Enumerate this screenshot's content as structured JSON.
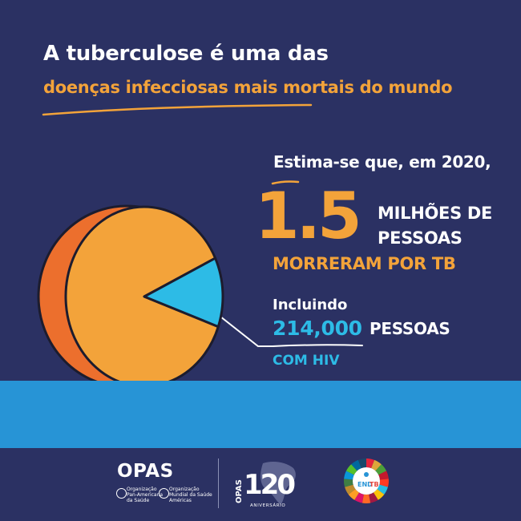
{
  "headline": {
    "line1": "A tuberculose é uma das",
    "line2": "doenças infecciosas mais mortais do mundo"
  },
  "stats": {
    "intro": "Estima-se que, em 2020,",
    "big_number": "1.5",
    "unit_line1": "MILHÕES DE",
    "unit_line2": "PESSOAS",
    "outcome": "MORRE. RAM POR TB"
  },
  "hiv": {
    "intro": "Incluindo",
    "number": "214,000",
    "unit": "PESSOAS",
    "qualifier": "COM HIV"
  },
  "footer": {
    "opas_word": "OPAS",
    "org1_line1": "Organização",
    "org1_line2": "Pan-Americana",
    "org1_line3": "da Saúde",
    "org2_line1": "Organização",
    "org2_line2": "Mundial da Saúde",
    "org2_line3": "Américas",
    "anniv_side": "OPAS",
    "anniv_number": "120",
    "anniv_label": "ANIVERSÁRIO",
    "endtb_end": "END",
    "endtb_tb": "TB"
  },
  "colors": {
    "background": "#2b3163",
    "orange": "#f3a33a",
    "dark_orange": "#ec6f2d",
    "cyan": "#2dbbe6",
    "band_blue": "#2794d6",
    "white": "#ffffff"
  },
  "chart_data": {
    "type": "pie",
    "title": "",
    "slices": [
      {
        "label": "",
        "value": 1500000,
        "color": "#f3a33a"
      },
      {
        "label": "",
        "value": 214000,
        "color": "#2dbbe6"
      }
    ]
  }
}
